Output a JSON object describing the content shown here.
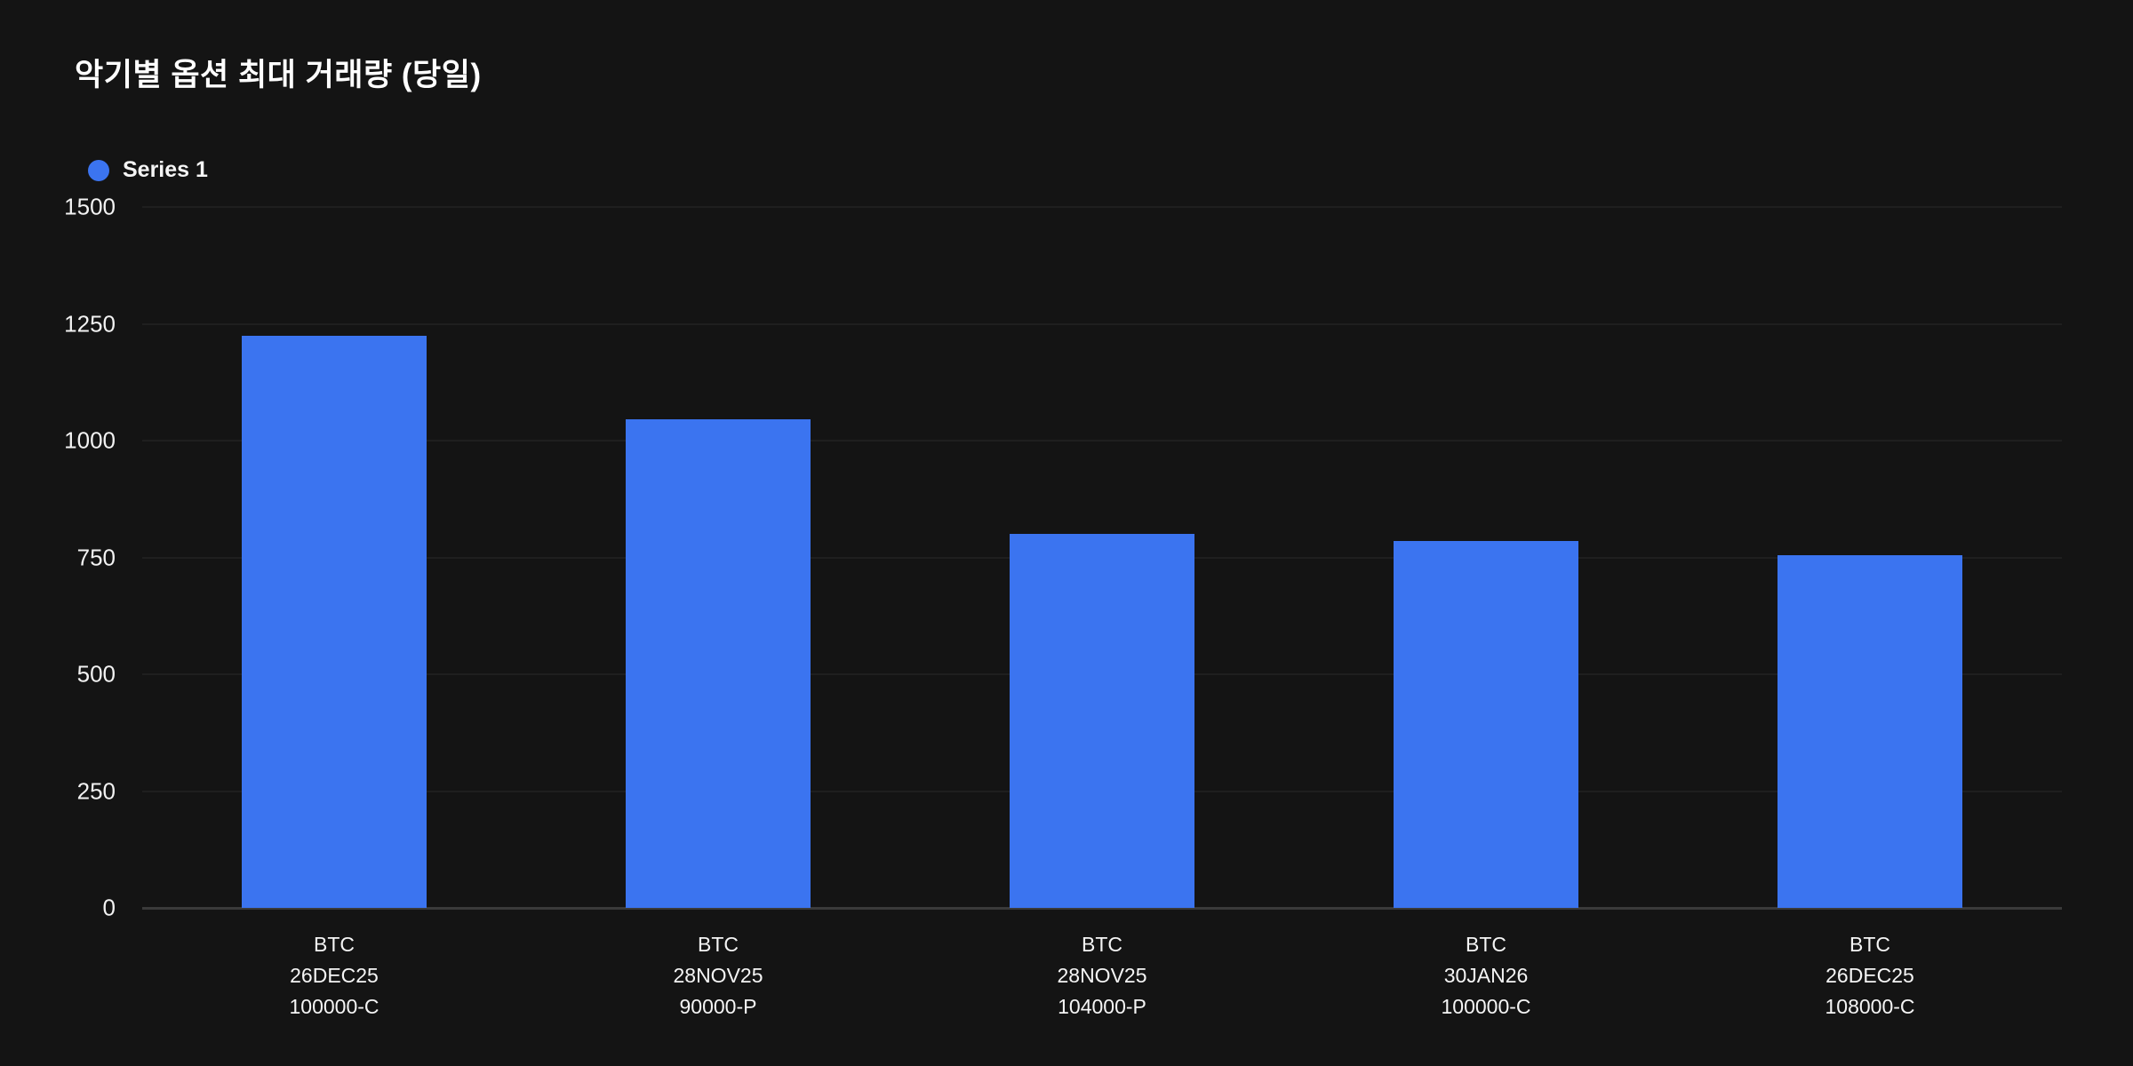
{
  "title": "악기별 옵션 최대 거래량 (당일)",
  "legend": {
    "series_label": "Series 1",
    "marker_color": "#3b74f0"
  },
  "colors": {
    "background": "#141414",
    "bar": "#3b74f0",
    "text": "#ffffff",
    "gridline": "#1f1f1f",
    "baseline": "#3a3a3a"
  },
  "chart_data": {
    "type": "bar",
    "title": "악기별 옵션 최대 거래량 (당일)",
    "series": [
      {
        "name": "Series 1",
        "color": "#3b74f0",
        "values": [
          1225,
          1045,
          800,
          785,
          755
        ]
      }
    ],
    "categories": [
      [
        "BTC",
        "26DEC25",
        "100000-C"
      ],
      [
        "BTC",
        "28NOV25",
        "90000-P"
      ],
      [
        "BTC",
        "28NOV25",
        "104000-P"
      ],
      [
        "BTC",
        "30JAN26",
        "100000-C"
      ],
      [
        "BTC",
        "26DEC25",
        "108000-C"
      ]
    ],
    "xlabel": "",
    "ylabel": "",
    "ylim": [
      0,
      1500
    ],
    "yticks": [
      0,
      250,
      500,
      750,
      1000,
      1250,
      1500
    ],
    "grid": true,
    "legend_position": "top-left"
  }
}
